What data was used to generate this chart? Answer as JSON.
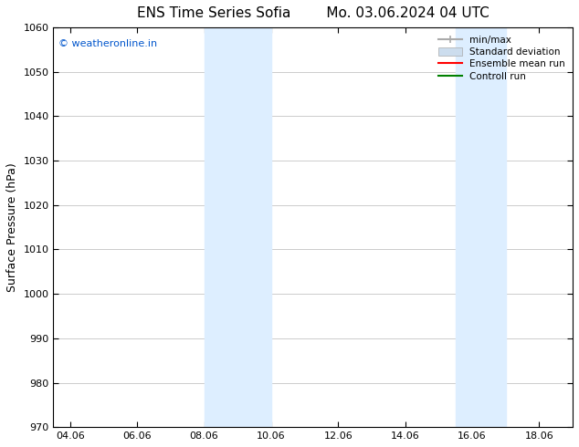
{
  "title": "ENS Time Series Sofia        Mo. 03.06.2024 04 UTC",
  "ylabel": "Surface Pressure (hPa)",
  "ylim": [
    970,
    1060
  ],
  "yticks": [
    970,
    980,
    990,
    1000,
    1010,
    1020,
    1030,
    1040,
    1050,
    1060
  ],
  "xlim_start": 3.5,
  "xlim_end": 19.0,
  "xtick_labels": [
    "04.06",
    "06.06",
    "08.06",
    "10.06",
    "12.06",
    "14.06",
    "16.06",
    "18.06"
  ],
  "xtick_positions": [
    4,
    6,
    8,
    10,
    12,
    14,
    16,
    18
  ],
  "shaded_bands": [
    {
      "x_start": 8.0,
      "x_end": 10.0
    },
    {
      "x_start": 15.5,
      "x_end": 17.0
    }
  ],
  "band_color": "#ddeeff",
  "watermark_text": "© weatheronline.in",
  "watermark_color": "#0055cc",
  "legend_items": [
    {
      "label": "min/max",
      "color": "#aaaaaa",
      "lw": 1.5,
      "style": "solid"
    },
    {
      "label": "Standard deviation",
      "color": "#ccddee",
      "lw": 6,
      "style": "solid"
    },
    {
      "label": "Ensemble mean run",
      "color": "#ff0000",
      "lw": 1.5,
      "style": "solid"
    },
    {
      "label": "Controll run",
      "color": "#008000",
      "lw": 1.5,
      "style": "solid"
    }
  ],
  "bg_color": "#ffffff",
  "grid_color": "#cccccc",
  "title_fontsize": 11,
  "label_fontsize": 9,
  "tick_fontsize": 8
}
